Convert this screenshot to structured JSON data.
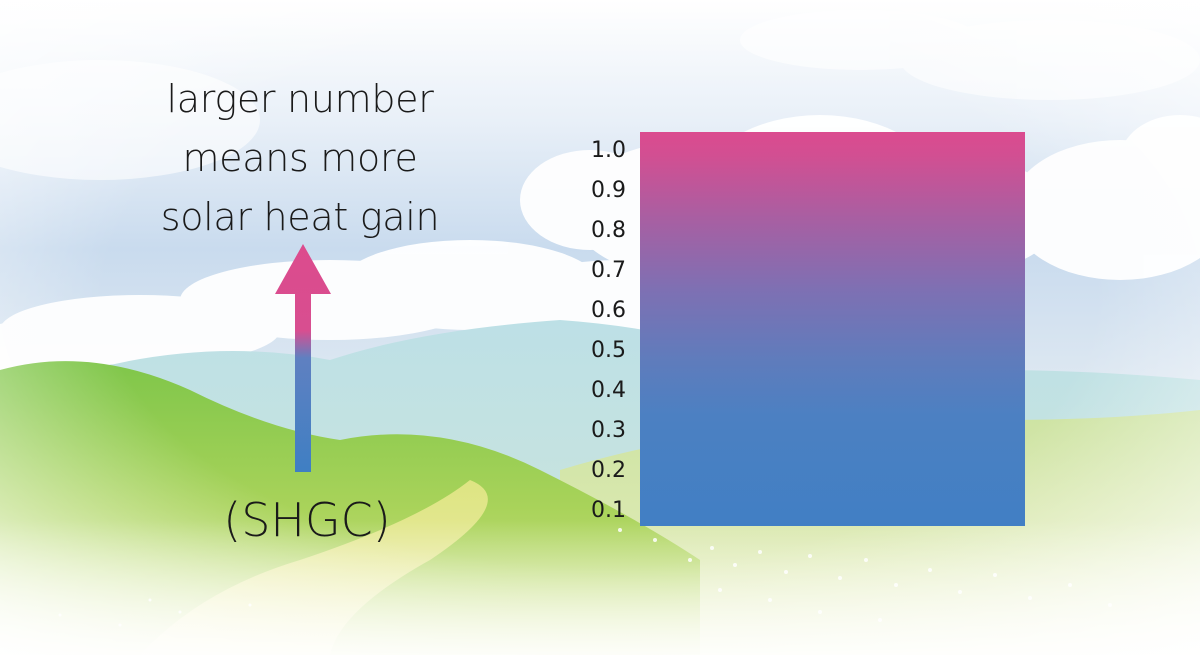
{
  "caption": {
    "lines": [
      "larger number",
      "means more",
      "solar heat gain"
    ]
  },
  "acronym": "(SHGC)",
  "scale": {
    "ticks": [
      "1.0",
      "0.9",
      "0.8",
      "0.7",
      "0.6",
      "0.5",
      "0.4",
      "0.3",
      "0.2",
      "0.1"
    ],
    "color_top": "#db4b8f",
    "color_bottom": "#417fc4"
  },
  "arrow": {
    "color_head": "#dc4b8d",
    "color_shaft": "#3f7fc3"
  }
}
